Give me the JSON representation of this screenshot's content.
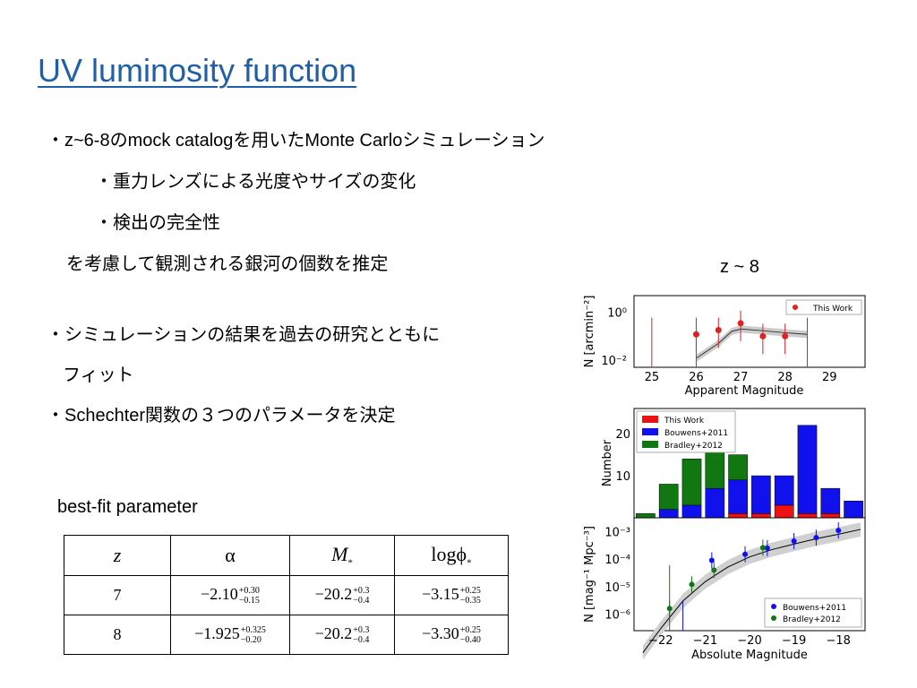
{
  "title": "UV luminosity function",
  "bullets": [
    "・z~6-8のmock catalogを用いたMonte Carloシミュレーション",
    "・重力レンズによる光度やサイズの変化",
    "・検出の完全性",
    "を考慮して観測される銀河の個数を推定",
    "・シミュレーションの結果を過去の研究とともに",
    "フィット",
    "・Schechter関数の３つのパラメータを決定"
  ],
  "z_label": "z ~ 8",
  "bestfit_label": "best-fit parameter",
  "table": {
    "headers": [
      "z",
      "α",
      "M",
      "*",
      "logϕ",
      "*"
    ],
    "rows": [
      {
        "z": "7",
        "alpha": "−2.10",
        "alpha_up": "+0.30",
        "alpha_dn": "−0.15",
        "M": "−20.2",
        "M_up": "+0.3",
        "M_dn": "−0.4",
        "phi": "−3.15",
        "phi_up": "+0.25",
        "phi_dn": "−0.35"
      },
      {
        "z": "8",
        "alpha": "−1.925",
        "alpha_up": "+0.325",
        "alpha_dn": "−0.20",
        "M": "−20.2",
        "M_up": "+0.3",
        "M_dn": "−0.4",
        "phi": "−3.30",
        "phi_up": "+0.25",
        "phi_dn": "−0.40"
      }
    ]
  },
  "chart_data": [
    {
      "type": "scatter",
      "xlabel": "Apparent Magnitude",
      "ylabel": "N [arcmin⁻²]",
      "xticks": [
        "25",
        "26",
        "27",
        "28",
        "29"
      ],
      "yticks": [
        "10⁰",
        "10⁻²"
      ],
      "yscale": "log",
      "xlim": [
        24.6,
        29.8
      ],
      "legend": {
        "placement": "top-right",
        "entries": [
          "This Work"
        ]
      },
      "series": [
        {
          "name": "This Work",
          "color": "#dd2222",
          "x": [
            25.0,
            26.0,
            26.5,
            27.0,
            27.5,
            28.0,
            28.5
          ],
          "y": [
            null,
            0.12,
            0.18,
            0.35,
            0.1,
            0.1,
            null
          ]
        }
      ],
      "upper_limits_x": [
        25.0,
        26.0,
        28.5
      ]
    },
    {
      "type": "bar",
      "ylabel": "Number",
      "yticks": [
        "10",
        "20"
      ],
      "legend": {
        "placement": "top-left",
        "entries": [
          "This Work",
          "Bouwens+2011",
          "Bradley+2012"
        ]
      },
      "colors": {
        "This Work": "#ee1111",
        "Bouwens+2011": "#1111ee",
        "Bradley+2012": "#117711"
      },
      "series": [
        {
          "name": "This Work",
          "values": [
            0,
            0,
            0,
            0,
            1,
            1,
            3,
            1,
            1,
            0
          ]
        },
        {
          "name": "Bouwens+2011",
          "values": [
            0,
            2,
            3,
            7,
            8,
            9,
            7,
            21,
            6,
            4
          ]
        },
        {
          "name": "Bradley+2012",
          "values": [
            1,
            6,
            11,
            10,
            6,
            0,
            0,
            0,
            0,
            0
          ]
        }
      ]
    },
    {
      "type": "scatter",
      "xlabel": "Absolute Magnitude",
      "ylabel": "N [mag⁻¹ Mpc⁻³]",
      "xticks": [
        "−22",
        "−21",
        "−20",
        "−19",
        "−18"
      ],
      "yticks": [
        "10⁻³",
        "10⁻⁴",
        "10⁻⁵",
        "10⁻⁶"
      ],
      "yscale": "log",
      "legend": {
        "placement": "bottom-right",
        "entries": [
          "Bouwens+2011",
          "Bradley+2012"
        ]
      },
      "series": [
        {
          "name": "Bouwens+2011",
          "color": "#1111ee",
          "x": [
            -20.85,
            -20.1,
            -19.6,
            -19.0,
            -18.5,
            -18.0
          ],
          "y": [
            9e-05,
            0.00015,
            0.00025,
            0.00045,
            0.0006,
            0.0011
          ]
        },
        {
          "name": "Bradley+2012",
          "color": "#117711",
          "x": [
            -21.8,
            -21.3,
            -20.8,
            -19.7
          ],
          "y": [
            1.6e-06,
            1.2e-05,
            4e-05,
            0.00026
          ]
        }
      ]
    }
  ]
}
